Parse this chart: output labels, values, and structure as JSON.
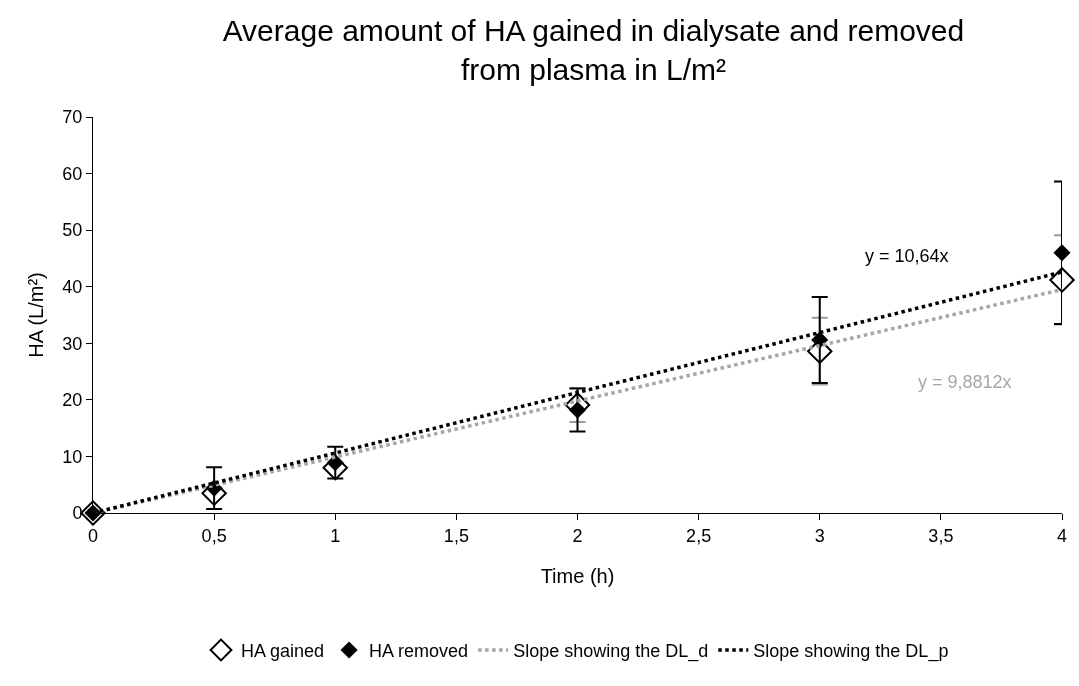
{
  "chart_data": {
    "type": "scatter",
    "title": "Average amount of HA gained in dialysate and removed\nfrom plasma in L/m²",
    "xlabel": "Time (h)",
    "ylabel": "HA (L/m²)",
    "x": [
      0,
      0.5,
      1,
      2,
      3,
      4
    ],
    "series": [
      {
        "name": "HA gained",
        "color": "#ffffff",
        "marker": "diamond",
        "values": [
          0,
          3.5,
          8.0,
          19.1,
          28.6,
          41.2
        ],
        "errors": [
          null,
          null,
          null,
          3.0,
          5.9,
          7.9
        ]
      },
      {
        "name": "HA removed",
        "color": "#000000",
        "marker": "diamond",
        "values": [
          0,
          4.4,
          8.9,
          18.2,
          30.6,
          46.0
        ],
        "errors": [
          null,
          3.7,
          2.8,
          3.8,
          7.6,
          12.6
        ]
      },
      {
        "name": "Slope showing the DL_d",
        "type": "line",
        "color": "#a6a6a6",
        "line_style": "dotted",
        "marker": "none",
        "values": [
          0,
          4.9,
          9.9,
          19.8,
          29.6,
          39.5
        ]
      },
      {
        "name": "Slope showing the DL_p",
        "type": "line",
        "color": "#000000",
        "line_style": "dotted",
        "marker": "none",
        "values": [
          0,
          5.3,
          10.6,
          21.3,
          31.9,
          42.6
        ]
      }
    ],
    "annotations": [
      "y = 9,8812x",
      "y = 10,64x"
    ],
    "xlim": [
      0,
      4
    ],
    "xticks": [
      0,
      {
        "value": 0.5,
        "label": "0,5"
      },
      1,
      {
        "value": 1.5,
        "label": "1,5"
      },
      2,
      {
        "value": 2.5,
        "label": "2,5"
      },
      3,
      {
        "value": 3.5,
        "label": "3,5"
      },
      4
    ],
    "ylim": [
      0,
      70
    ],
    "yticks": [
      0,
      10,
      20,
      30,
      40,
      50,
      60,
      70
    ],
    "grid": false,
    "legend": "bottom"
  }
}
